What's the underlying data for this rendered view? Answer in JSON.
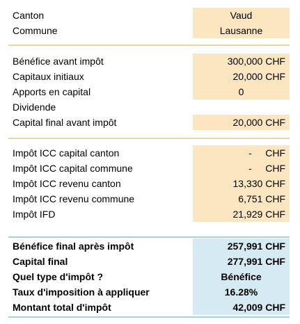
{
  "location": {
    "canton_label": "Canton",
    "canton_value": "Vaud",
    "commune_label": "Commune",
    "commune_value": "Lausanne"
  },
  "inputs": [
    {
      "label": "Bénéfice avant impôt",
      "value": "300,000 CHF"
    },
    {
      "label": "Capitaux initiaux",
      "value": "20,000 CHF"
    },
    {
      "label": "Apports en capital",
      "value": "0"
    },
    {
      "label": "Dividende",
      "value": ""
    },
    {
      "label": "Capital final avant impôt",
      "value": "20,000 CHF"
    }
  ],
  "taxes": [
    {
      "label": "Impôt ICC capital canton",
      "value": "-     CHF"
    },
    {
      "label": "Impôt ICC capital commune",
      "value": "-     CHF"
    },
    {
      "label": "Impôt ICC revenu canton",
      "value": "13,330 CHF"
    },
    {
      "label": "Impôt ICC revenu commune",
      "value": "6,751 CHF"
    },
    {
      "label": "Impôt IFD",
      "value": "21,929 CHF"
    }
  ],
  "results": [
    {
      "label": "Bénéfice final après impôt",
      "value": "257,991 CHF"
    },
    {
      "label": "Capital final",
      "value": "277,991 CHF"
    },
    {
      "label": "Quel type d'impôt ?",
      "value": "Bénéfice"
    },
    {
      "label": "Taux d'imposition à appliquer",
      "value": "16.28%"
    },
    {
      "label": "Montant total d'impôt",
      "value": "42,009 CHF"
    }
  ]
}
